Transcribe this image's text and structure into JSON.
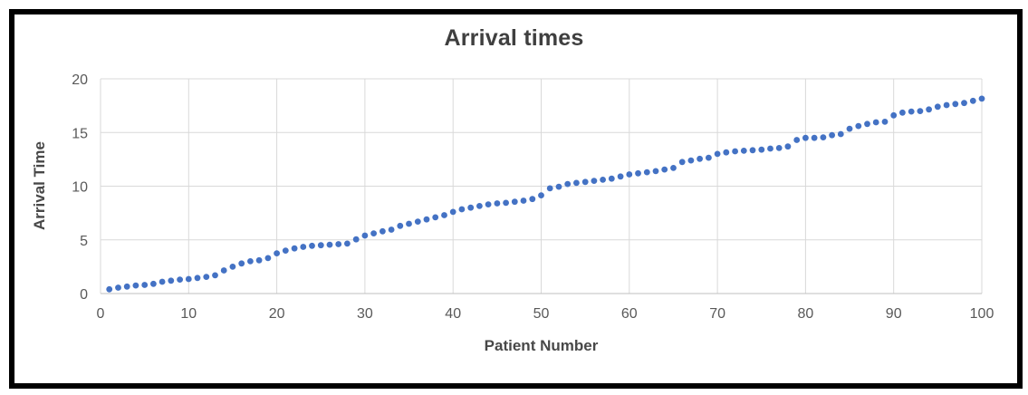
{
  "window": {
    "background_color": "#ffffff",
    "border_color": "#000000"
  },
  "chart_data": {
    "type": "scatter",
    "title": "Arrival times",
    "xlabel": "Patient Number",
    "ylabel": "Arrival Time",
    "xlim": [
      0,
      100
    ],
    "ylim": [
      0,
      20
    ],
    "xticks": [
      0,
      10,
      20,
      30,
      40,
      50,
      60,
      70,
      80,
      90,
      100
    ],
    "yticks": [
      0,
      5,
      10,
      15,
      20
    ],
    "grid": true,
    "legend_position": "none",
    "marker_color": "#4472C4",
    "gridline_color": "#d9d9d9",
    "axis_line_color": "#bfbfbf",
    "series": [
      {
        "name": "Arrival Time",
        "x": [
          1,
          2,
          3,
          4,
          5,
          6,
          7,
          8,
          9,
          10,
          11,
          12,
          13,
          14,
          15,
          16,
          17,
          18,
          19,
          20,
          21,
          22,
          23,
          24,
          25,
          26,
          27,
          28,
          29,
          30,
          31,
          32,
          33,
          34,
          35,
          36,
          37,
          38,
          39,
          40,
          41,
          42,
          43,
          44,
          45,
          46,
          47,
          48,
          49,
          50,
          51,
          52,
          53,
          54,
          55,
          56,
          57,
          58,
          59,
          60,
          61,
          62,
          63,
          64,
          65,
          66,
          67,
          68,
          69,
          70,
          71,
          72,
          73,
          74,
          75,
          76,
          77,
          78,
          79,
          80,
          81,
          82,
          83,
          84,
          85,
          86,
          87,
          88,
          89,
          90,
          91,
          92,
          93,
          94,
          95,
          96,
          97,
          98,
          99,
          100
        ],
        "y": [
          0.4,
          0.55,
          0.65,
          0.75,
          0.8,
          0.9,
          1.1,
          1.2,
          1.3,
          1.35,
          1.45,
          1.55,
          1.7,
          2.15,
          2.5,
          2.8,
          3.0,
          3.1,
          3.3,
          3.75,
          4.0,
          4.2,
          4.35,
          4.45,
          4.5,
          4.55,
          4.6,
          4.65,
          5.05,
          5.4,
          5.6,
          5.8,
          5.95,
          6.3,
          6.5,
          6.7,
          6.9,
          7.1,
          7.3,
          7.6,
          7.85,
          8.0,
          8.15,
          8.3,
          8.4,
          8.45,
          8.55,
          8.65,
          8.8,
          9.15,
          9.8,
          9.95,
          10.2,
          10.3,
          10.4,
          10.5,
          10.6,
          10.7,
          10.9,
          11.1,
          11.2,
          11.3,
          11.4,
          11.55,
          11.7,
          12.25,
          12.4,
          12.55,
          12.65,
          13.0,
          13.15,
          13.25,
          13.3,
          13.35,
          13.4,
          13.5,
          13.55,
          13.7,
          14.3,
          14.5,
          14.5,
          14.55,
          14.75,
          14.85,
          15.35,
          15.6,
          15.8,
          15.95,
          16.0,
          16.6,
          16.85,
          16.95,
          17.0,
          17.15,
          17.4,
          17.55,
          17.65,
          17.75,
          17.95,
          18.15
        ]
      }
    ]
  }
}
